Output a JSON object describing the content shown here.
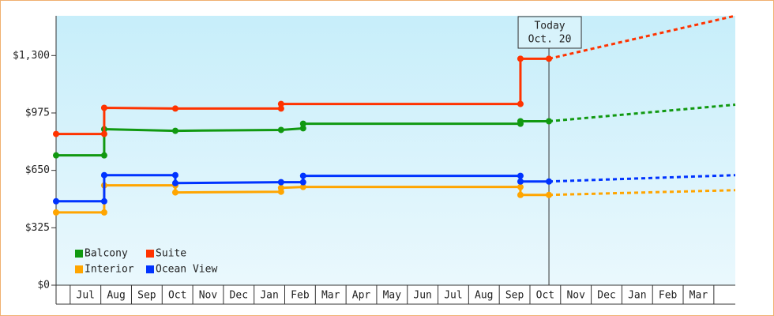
{
  "chart_data": {
    "type": "line",
    "xlim": [
      -0.46,
      21.7
    ],
    "ylim": [
      0,
      1525
    ],
    "yticks": [
      {
        "value": 0,
        "label": "$0"
      },
      {
        "value": 325,
        "label": "$325"
      },
      {
        "value": 650,
        "label": "$650"
      },
      {
        "value": 975,
        "label": "$975"
      },
      {
        "value": 1300,
        "label": "$1,300"
      }
    ],
    "xticks": [
      {
        "value": 0.5,
        "label": "Jul"
      },
      {
        "value": 1.5,
        "label": "Aug"
      },
      {
        "value": 2.5,
        "label": "Sep"
      },
      {
        "value": 3.5,
        "label": "Oct"
      },
      {
        "value": 4.5,
        "label": "Nov"
      },
      {
        "value": 5.5,
        "label": "Dec"
      },
      {
        "value": 6.5,
        "label": "Jan"
      },
      {
        "value": 7.5,
        "label": "Feb"
      },
      {
        "value": 8.5,
        "label": "Mar"
      },
      {
        "value": 9.5,
        "label": "Apr"
      },
      {
        "value": 10.5,
        "label": "May"
      },
      {
        "value": 11.5,
        "label": "Jun"
      },
      {
        "value": 12.5,
        "label": "Jul"
      },
      {
        "value": 13.5,
        "label": "Aug"
      },
      {
        "value": 14.5,
        "label": "Sep"
      },
      {
        "value": 15.5,
        "label": "Oct"
      },
      {
        "value": 16.5,
        "label": "Nov"
      },
      {
        "value": 17.5,
        "label": "Dec"
      },
      {
        "value": 18.5,
        "label": "Jan"
      },
      {
        "value": 19.5,
        "label": "Feb"
      },
      {
        "value": 20.5,
        "label": "Mar"
      }
    ],
    "annotation": {
      "lines": [
        "Today",
        "Oct. 20"
      ],
      "x": 15.62
    },
    "series": [
      {
        "name": "Balcony",
        "color": "#119911",
        "x": [
          -0.46,
          1.11,
          1.11,
          3.43,
          6.88,
          7.6,
          7.6,
          14.69,
          14.69,
          15.62
        ],
        "values": [
          735,
          735,
          883,
          874,
          879,
          888,
          914,
          914,
          928,
          928
        ],
        "forecast": {
          "x": [
            15.62,
            21.7
          ],
          "values": [
            928,
            1022
          ]
        }
      },
      {
        "name": "Suite",
        "color": "#ff3300",
        "x": [
          -0.46,
          1.11,
          1.11,
          3.43,
          6.88,
          6.88,
          14.69,
          14.69,
          15.62
        ],
        "values": [
          856,
          856,
          1004,
          1000,
          1000,
          1026,
          1026,
          1282,
          1282
        ],
        "forecast": {
          "x": [
            15.62,
            21.7
          ],
          "values": [
            1282,
            1525
          ]
        }
      },
      {
        "name": "Interior",
        "color": "#ffa500",
        "x": [
          -0.46,
          1.11,
          1.11,
          3.43,
          3.43,
          6.88,
          6.88,
          7.6,
          14.69,
          14.69,
          15.62
        ],
        "values": [
          412,
          412,
          565,
          565,
          525,
          529,
          551,
          556,
          556,
          511,
          511
        ],
        "forecast": {
          "x": [
            15.62,
            21.7
          ],
          "values": [
            511,
            538
          ]
        }
      },
      {
        "name": "Ocean View",
        "color": "#0033ff",
        "x": [
          -0.46,
          1.11,
          1.11,
          3.43,
          3.43,
          6.88,
          7.6,
          7.6,
          14.69,
          14.69,
          15.62
        ],
        "values": [
          475,
          475,
          623,
          623,
          578,
          583,
          583,
          619,
          619,
          587,
          587
        ],
        "forecast": {
          "x": [
            15.62,
            21.7
          ],
          "values": [
            587,
            623
          ]
        }
      }
    ]
  }
}
